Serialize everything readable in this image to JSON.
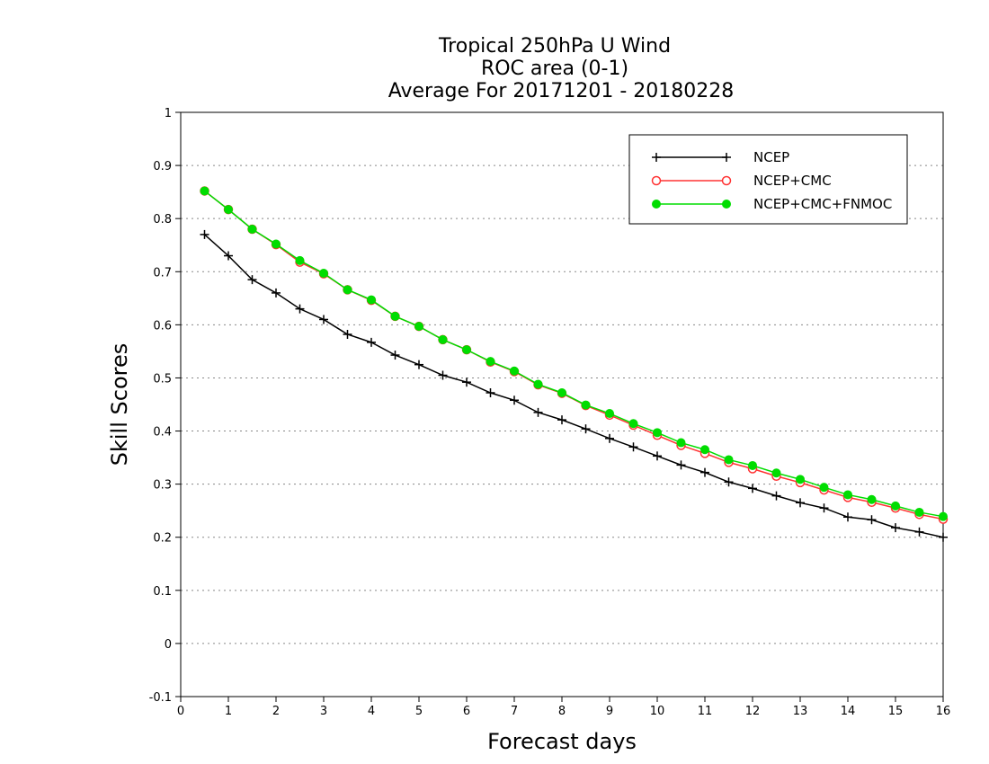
{
  "chart_data": {
    "type": "line",
    "title_lines": [
      "Tropical 250hPa U Wind",
      "ROC area (0-1)",
      "Average For 20171201 - 20180228"
    ],
    "xlabel": "Forecast days",
    "ylabel": "Skill Scores",
    "xlim": [
      0,
      16
    ],
    "ylim": [
      -0.1,
      1
    ],
    "x_ticks": [
      "0",
      "1",
      "2",
      "3",
      "4",
      "5",
      "6",
      "7",
      "8",
      "9",
      "10",
      "11",
      "12",
      "13",
      "14",
      "15",
      "16"
    ],
    "y_ticks": [
      "-0.1",
      "0",
      "0.1",
      "0.2",
      "0.3",
      "0.4",
      "0.5",
      "0.6",
      "0.7",
      "0.8",
      "0.9",
      "1"
    ],
    "grid": "horizontal dotted",
    "legend_position": "top-right",
    "x": [
      0.5,
      1,
      1.5,
      2,
      2.5,
      3,
      3.5,
      4,
      4.5,
      5,
      5.5,
      6,
      6.5,
      7,
      7.5,
      8,
      8.5,
      9,
      9.5,
      10,
      10.5,
      11,
      11.5,
      12,
      12.5,
      13,
      13.5,
      14,
      14.5,
      15,
      15.5,
      16
    ],
    "series": [
      {
        "name": "NCEP",
        "color": "#000000",
        "marker": "plus",
        "values": [
          0.77,
          0.73,
          0.685,
          0.66,
          0.63,
          0.61,
          0.582,
          0.567,
          0.543,
          0.525,
          0.505,
          0.492,
          0.472,
          0.458,
          0.435,
          0.421,
          0.404,
          0.386,
          0.37,
          0.353,
          0.336,
          0.322,
          0.304,
          0.292,
          0.278,
          0.265,
          0.255,
          0.238,
          0.233,
          0.218,
          0.21,
          0.2
        ]
      },
      {
        "name": "NCEP+CMC",
        "color": "#ff3333",
        "marker": "open-circle",
        "values": [
          0.852,
          0.817,
          0.78,
          0.751,
          0.718,
          0.696,
          0.666,
          0.646,
          0.616,
          0.597,
          0.572,
          0.553,
          0.53,
          0.512,
          0.487,
          0.471,
          0.448,
          0.43,
          0.411,
          0.392,
          0.373,
          0.358,
          0.341,
          0.329,
          0.315,
          0.303,
          0.289,
          0.275,
          0.266,
          0.255,
          0.243,
          0.234
        ]
      },
      {
        "name": "NCEP+CMC+FNMOC",
        "color": "#00dd00",
        "marker": "filled-circle",
        "values": [
          0.852,
          0.817,
          0.78,
          0.752,
          0.721,
          0.697,
          0.666,
          0.647,
          0.616,
          0.597,
          0.572,
          0.553,
          0.531,
          0.513,
          0.488,
          0.472,
          0.449,
          0.433,
          0.414,
          0.397,
          0.378,
          0.365,
          0.346,
          0.335,
          0.321,
          0.309,
          0.294,
          0.28,
          0.271,
          0.259,
          0.247,
          0.239
        ]
      }
    ]
  }
}
